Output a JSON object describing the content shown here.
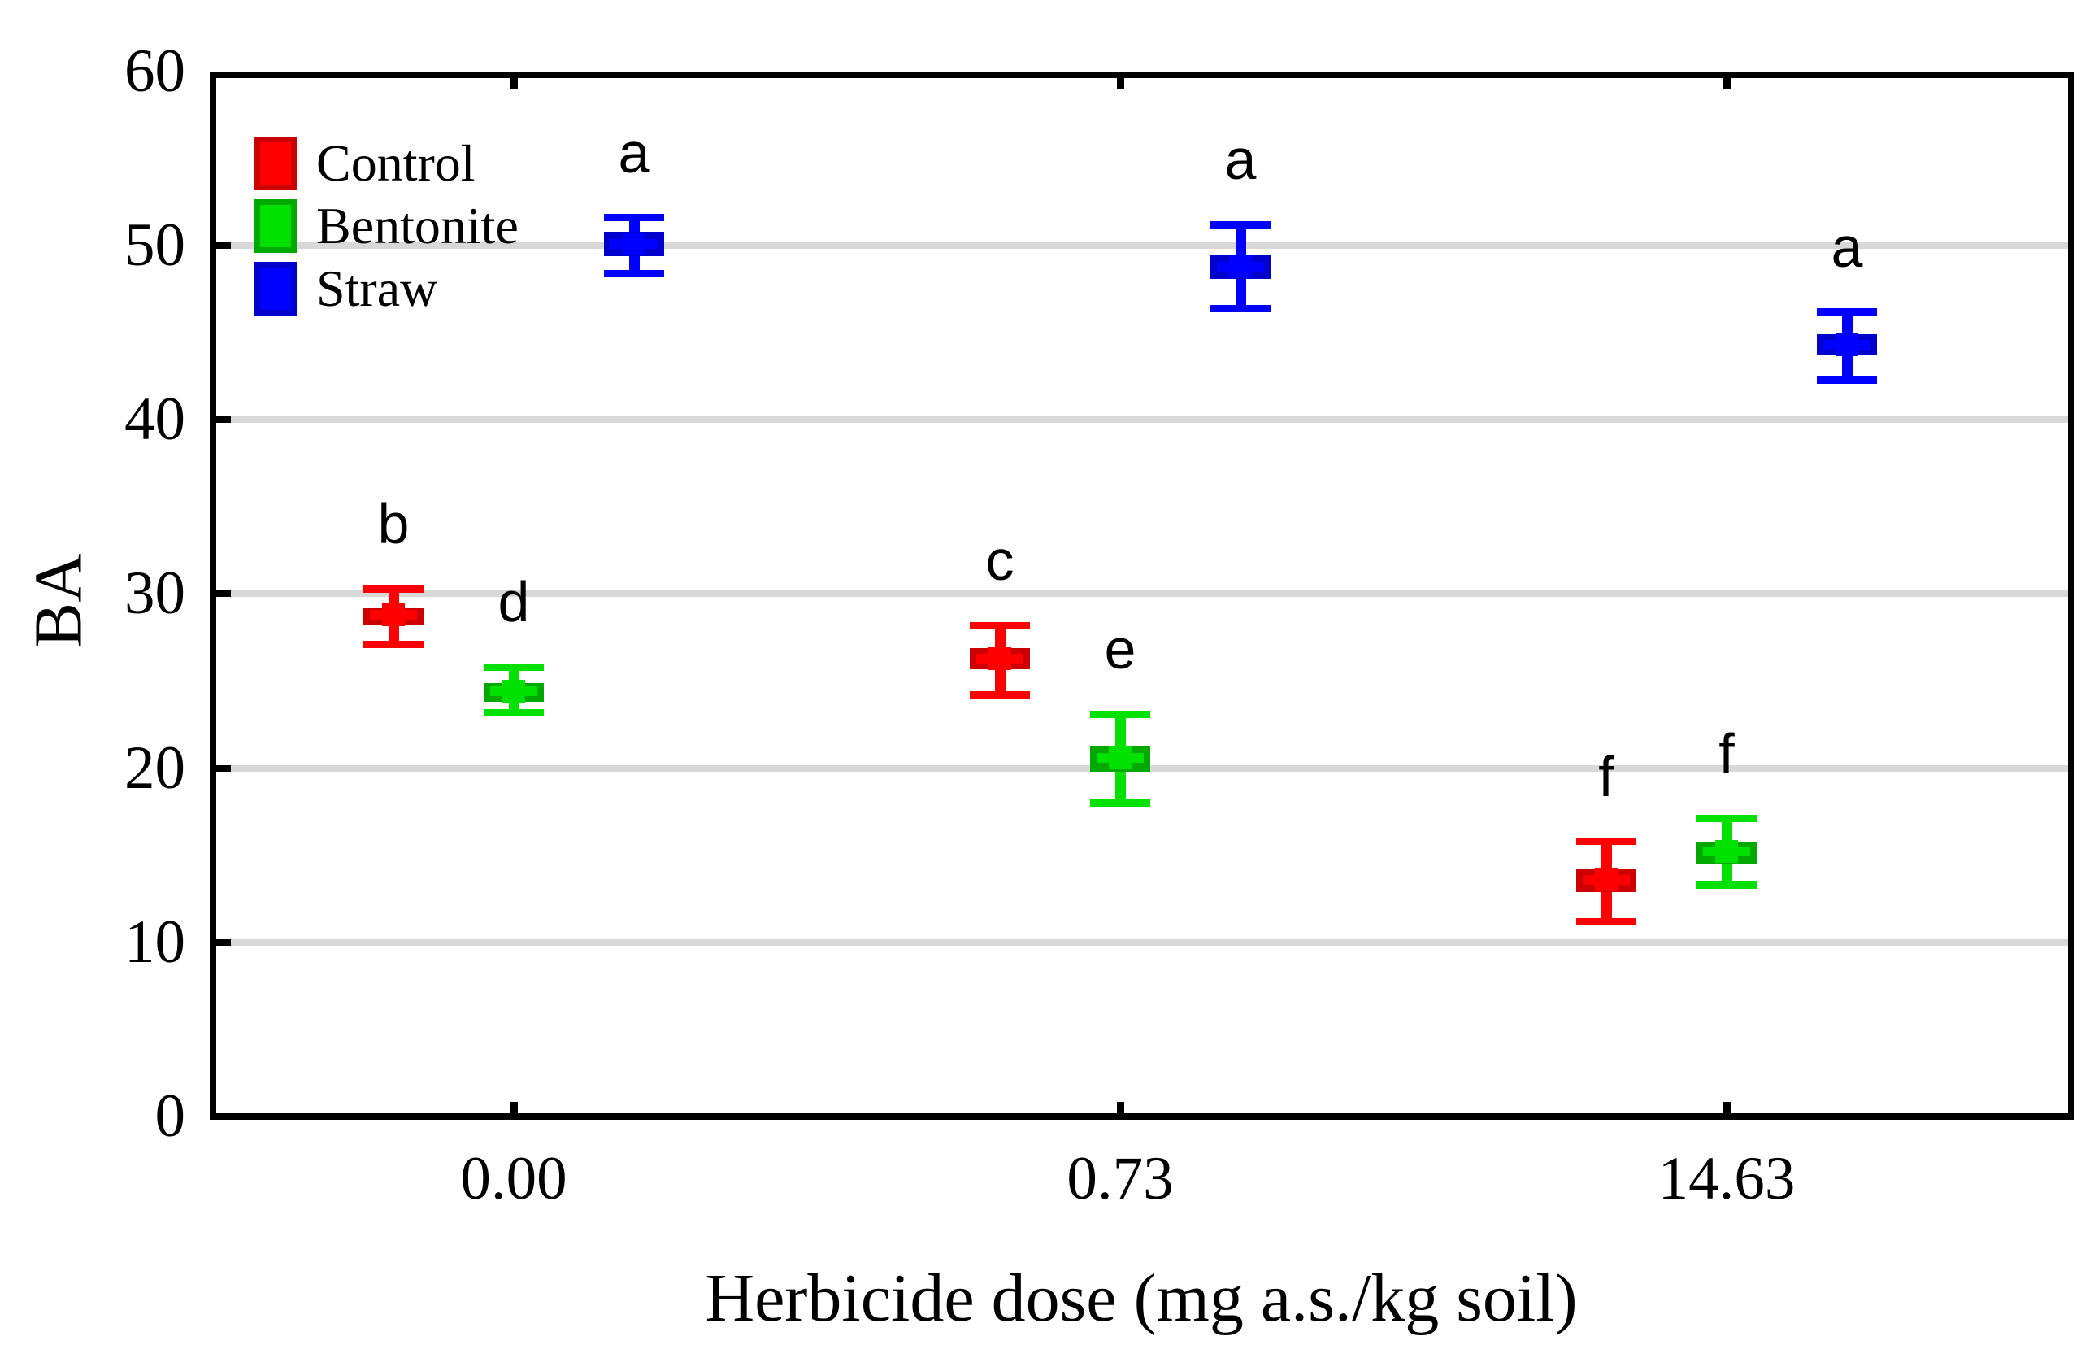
{
  "chart_data": {
    "type": "boxplot",
    "title": "",
    "xlabel": "Herbicide dose (mg a.s./kg soil)",
    "ylabel": "BA",
    "ylim": [
      0,
      60
    ],
    "yticks": [
      0,
      10,
      20,
      30,
      40,
      50,
      60
    ],
    "gridlines_at": [
      10,
      20,
      30,
      40,
      50
    ],
    "grid": "horizontal",
    "legend_position": "top-left-inside",
    "categories": [
      "0.00",
      "0.73",
      "14.63"
    ],
    "legend": [
      {
        "name": "Control",
        "color": "#ff0000",
        "dark": "#cc0000"
      },
      {
        "name": "Bentonite",
        "color": "#00e100",
        "dark": "#00a800"
      },
      {
        "name": "Straw",
        "color": "#0000ff",
        "dark": "#0000cc"
      }
    ],
    "series": [
      {
        "name": "Control",
        "color": "#ff0000",
        "dark": "#cc0000",
        "offset": -148,
        "points": [
          {
            "category": "0.00",
            "letter": "b",
            "center": 28.8,
            "box": [
              28.2,
              29.2
            ],
            "whiskers": [
              27.1,
              30.3
            ]
          },
          {
            "category": "0.73",
            "letter": "c",
            "center": 26.3,
            "box": [
              25.7,
              26.9
            ],
            "whiskers": [
              24.2,
              28.2
            ]
          },
          {
            "category": "14.63",
            "letter": "f",
            "center": 13.6,
            "box": [
              12.9,
              14.2
            ],
            "whiskers": [
              11.2,
              15.8
            ]
          }
        ]
      },
      {
        "name": "Bentonite",
        "color": "#00e100",
        "dark": "#00a800",
        "offset": 0,
        "points": [
          {
            "category": "0.00",
            "letter": "d",
            "center": 24.4,
            "box": [
              23.8,
              24.9
            ],
            "whiskers": [
              23.2,
              25.8
            ]
          },
          {
            "category": "0.73",
            "letter": "e",
            "center": 20.6,
            "box": [
              19.8,
              21.3
            ],
            "whiskers": [
              18.0,
              23.1
            ]
          },
          {
            "category": "14.63",
            "letter": "f",
            "center": 15.2,
            "box": [
              14.5,
              15.8
            ],
            "whiskers": [
              13.3,
              17.1
            ]
          }
        ]
      },
      {
        "name": "Straw",
        "color": "#0000ff",
        "dark": "#0000cc",
        "offset": 148,
        "points": [
          {
            "category": "0.00",
            "letter": "a",
            "center": 50.1,
            "box": [
              49.4,
              50.8
            ],
            "whiskers": [
              48.4,
              51.6
            ]
          },
          {
            "category": "0.73",
            "letter": "a",
            "center": 48.8,
            "box": [
              48.1,
              49.5
            ],
            "whiskers": [
              46.4,
              51.2
            ]
          },
          {
            "category": "14.63",
            "letter": "a",
            "center": 44.3,
            "box": [
              43.7,
              44.9
            ],
            "whiskers": [
              42.3,
              46.2
            ]
          }
        ]
      }
    ]
  }
}
